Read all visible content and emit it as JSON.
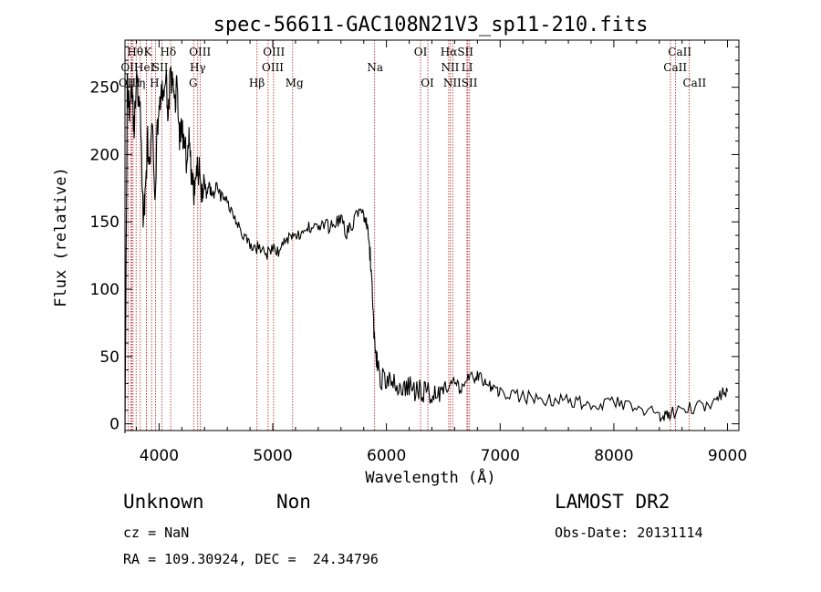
{
  "chart_data": {
    "type": "line",
    "title": "spec-56611-GAC108N21V3_sp11-210.fits",
    "xlabel": "Wavelength (Å)",
    "ylabel": "Flux (relative)",
    "xlim": [
      3700,
      9100
    ],
    "ylim": [
      -5,
      285
    ],
    "x_ticks": [
      4000,
      5000,
      6000,
      7000,
      8000,
      9000
    ],
    "y_ticks": [
      0,
      50,
      100,
      150,
      200,
      250
    ],
    "grid": false,
    "line_color": "#000000",
    "marker_color": "#b22222",
    "x": [
      3700,
      3720,
      3740,
      3760,
      3780,
      3800,
      3820,
      3840,
      3860,
      3880,
      3900,
      3920,
      3940,
      3960,
      3980,
      4000,
      4020,
      4040,
      4060,
      4080,
      4100,
      4120,
      4140,
      4160,
      4180,
      4200,
      4220,
      4240,
      4260,
      4280,
      4300,
      4320,
      4340,
      4360,
      4380,
      4400,
      4420,
      4440,
      4460,
      4480,
      4500,
      4550,
      4600,
      4650,
      4700,
      4750,
      4800,
      4850,
      4900,
      4950,
      5000,
      5050,
      5100,
      5150,
      5200,
      5250,
      5300,
      5350,
      5400,
      5450,
      5500,
      5550,
      5600,
      5650,
      5700,
      5750,
      5800,
      5820,
      5840,
      5860,
      5880,
      5900,
      5920,
      5950,
      6000,
      6050,
      6100,
      6150,
      6200,
      6250,
      6300,
      6350,
      6400,
      6450,
      6500,
      6550,
      6600,
      6650,
      6700,
      6750,
      6800,
      6850,
      6900,
      6950,
      7000,
      7100,
      7200,
      7300,
      7400,
      7500,
      7600,
      7700,
      7800,
      7900,
      8000,
      8100,
      8200,
      8300,
      8400,
      8450,
      8500,
      8600,
      8700,
      8800,
      8900,
      8950,
      9000
    ],
    "y": [
      5,
      250,
      235,
      255,
      215,
      258,
      240,
      222,
      150,
      175,
      210,
      185,
      230,
      160,
      212,
      238,
      242,
      248,
      255,
      232,
      258,
      250,
      240,
      252,
      212,
      222,
      205,
      198,
      215,
      188,
      172,
      178,
      190,
      185,
      172,
      180,
      168,
      175,
      172,
      168,
      178,
      168,
      165,
      158,
      148,
      138,
      132,
      130,
      132,
      126,
      130,
      128,
      135,
      140,
      142,
      138,
      145,
      148,
      146,
      148,
      146,
      150,
      152,
      142,
      148,
      158,
      155,
      150,
      140,
      120,
      88,
      55,
      45,
      35,
      32,
      30,
      28,
      26,
      27,
      25,
      24,
      25,
      23,
      24,
      26,
      28,
      30,
      26,
      32,
      34,
      36,
      32,
      28,
      26,
      24,
      22,
      20,
      19,
      18,
      17,
      18,
      16,
      15,
      14,
      16,
      13,
      12,
      10,
      6,
      5,
      8,
      10,
      12,
      14,
      18,
      22,
      24
    ]
  },
  "line_markers": {
    "x": [
      3727,
      3750,
      3771,
      3798,
      3835,
      3889,
      3934,
      3969,
      4102,
      4340,
      4861,
      5175,
      5896,
      6300,
      6563,
      6583,
      6716,
      6731,
      8498,
      8542,
      8662,
      3760,
      3889,
      4026,
      4304,
      4363,
      4959,
      5007,
      6364,
      6548,
      6708
    ],
    "top_labels": [
      "Hθ",
      "K",
      "Hδ",
      "OIII",
      "OIII",
      "OI",
      "HαSII",
      "CaII"
    ],
    "second_labels": [
      "OII",
      "HeI",
      "SII",
      "Hγ",
      "OIII",
      "Na",
      "NII",
      "LI",
      "CaII"
    ],
    "third_labels": [
      "OIII",
      "η",
      "H",
      "G",
      "Hβ",
      "Mg",
      "OI",
      "NIISII",
      "CaII"
    ]
  },
  "info": {
    "object_class": "Unknown",
    "subclass": "Non",
    "cz": "cz = NaN",
    "coords": "RA = 109.30924, DEC =  24.34796",
    "survey": "LAMOST DR2",
    "obs_date": "Obs-Date: 20131114"
  }
}
